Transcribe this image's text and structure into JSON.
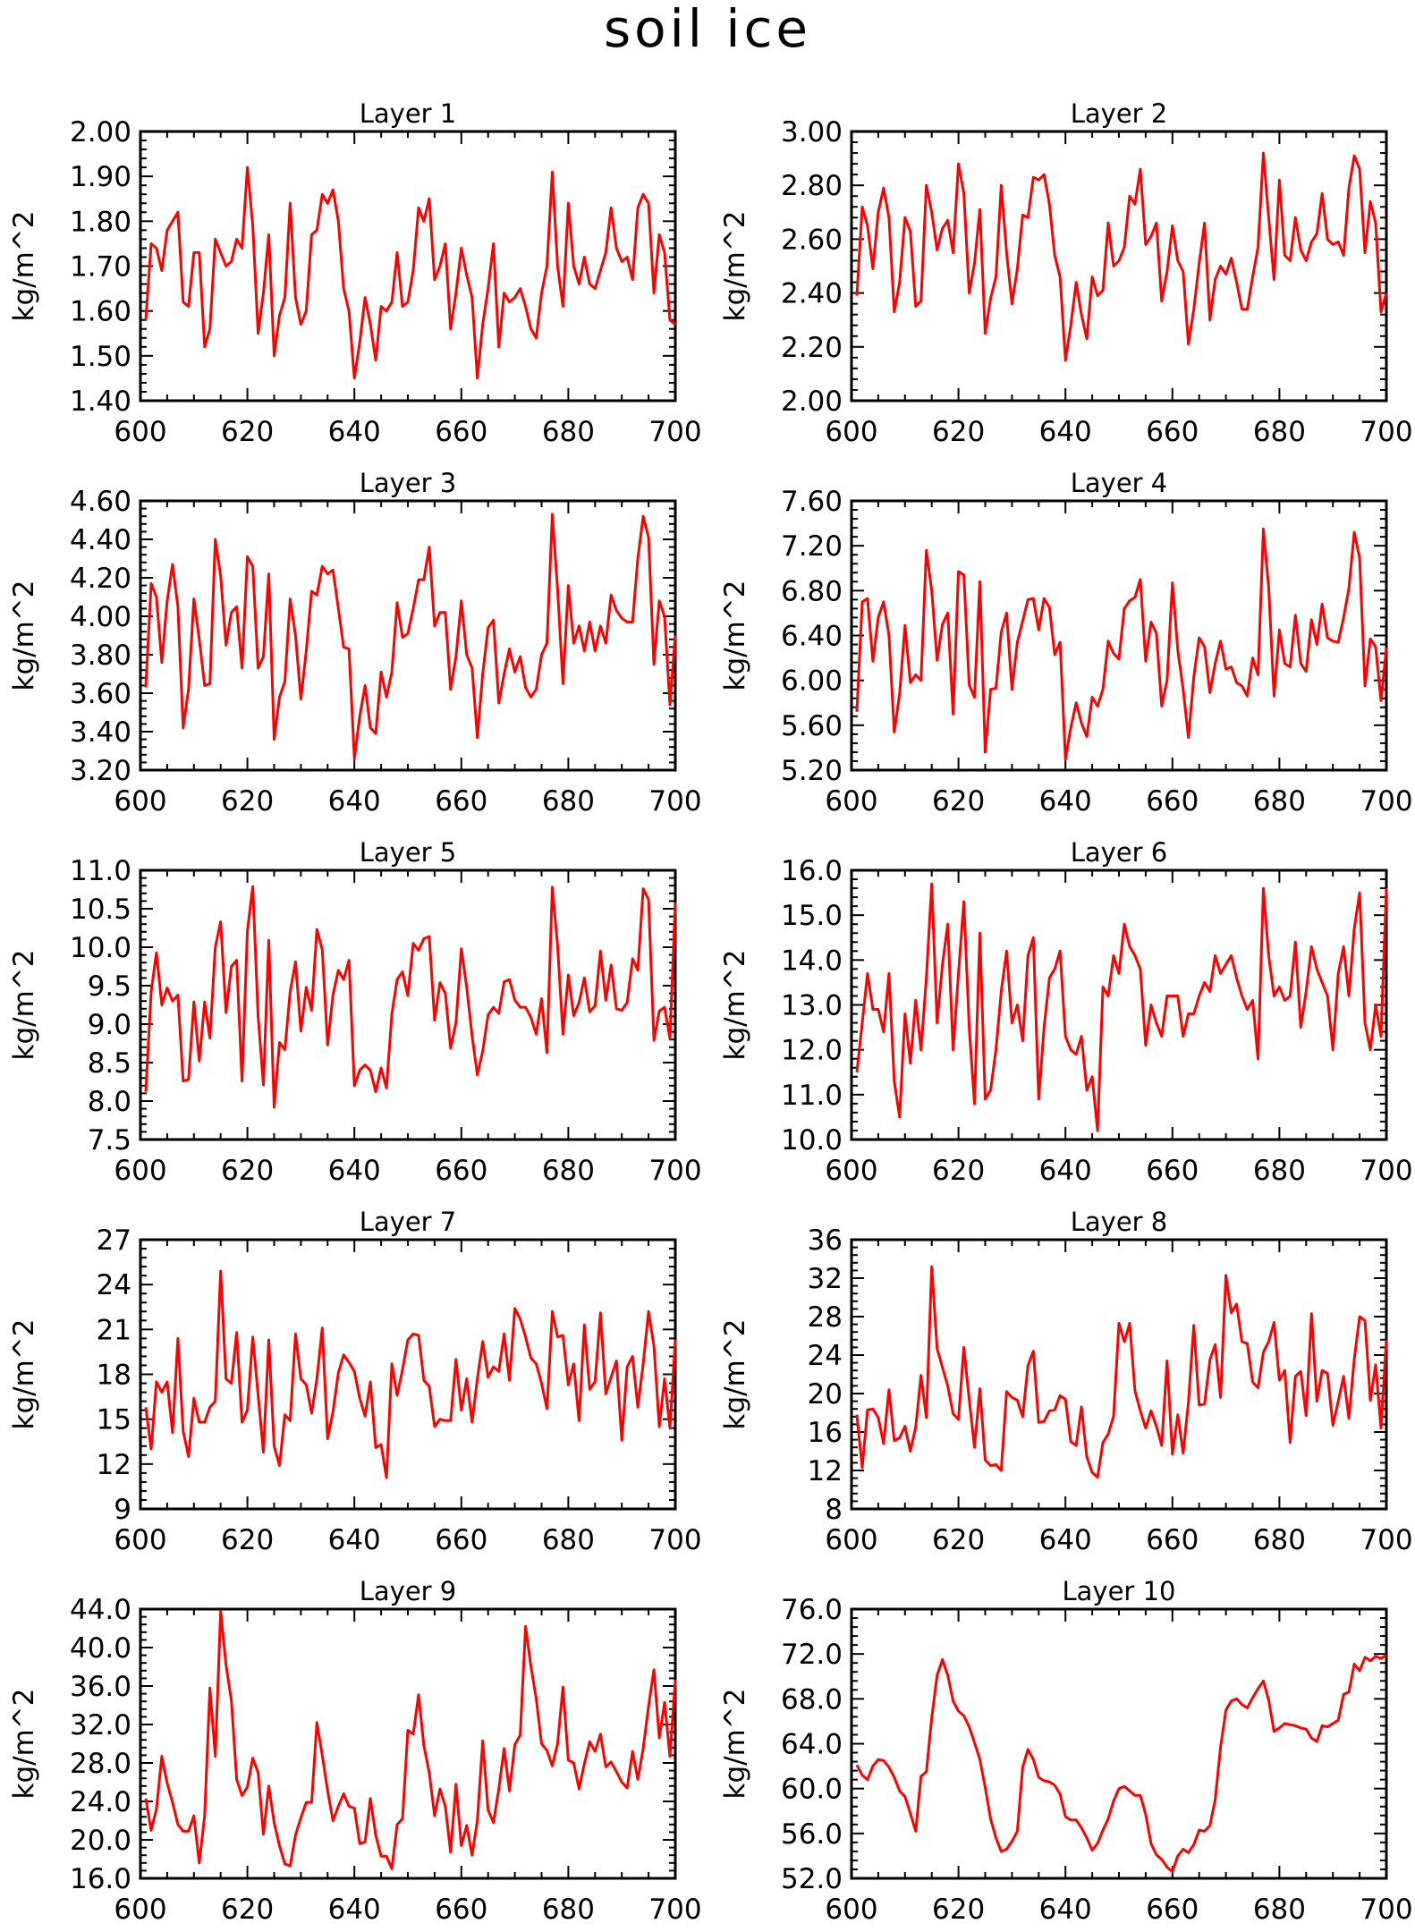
{
  "figure": {
    "title": "soil ice",
    "line_color": "#ff0000"
  },
  "chart_data": [
    {
      "type": "line",
      "title": "Layer 1",
      "xlabel": "",
      "ylabel": "kg/m^2",
      "xlim": [
        600,
        700
      ],
      "ylim": [
        1.4,
        2.0
      ],
      "xticks": [
        "600",
        "620",
        "640",
        "660",
        "680",
        "700"
      ],
      "yticks": [
        "1.40",
        "1.50",
        "1.60",
        "1.70",
        "1.80",
        "1.90",
        "2.00"
      ],
      "x_start": 601,
      "values": [
        1.58,
        1.75,
        1.74,
        1.69,
        1.78,
        1.8,
        1.82,
        1.62,
        1.61,
        1.73,
        1.73,
        1.52,
        1.56,
        1.76,
        1.73,
        1.7,
        1.71,
        1.76,
        1.74,
        1.92,
        1.79,
        1.55,
        1.64,
        1.77,
        1.5,
        1.59,
        1.63,
        1.84,
        1.63,
        1.57,
        1.6,
        1.77,
        1.78,
        1.86,
        1.84,
        1.87,
        1.8,
        1.65,
        1.6,
        1.45,
        1.53,
        1.63,
        1.57,
        1.49,
        1.61,
        1.6,
        1.62,
        1.73,
        1.61,
        1.62,
        1.69,
        1.83,
        1.8,
        1.85,
        1.67,
        1.7,
        1.75,
        1.56,
        1.64,
        1.74,
        1.68,
        1.63,
        1.45,
        1.57,
        1.65,
        1.75,
        1.52,
        1.64,
        1.62,
        1.63,
        1.65,
        1.61,
        1.56,
        1.54,
        1.64,
        1.7,
        1.91,
        1.7,
        1.61,
        1.84,
        1.7,
        1.66,
        1.72,
        1.66,
        1.65,
        1.69,
        1.73,
        1.83,
        1.74,
        1.71,
        1.72,
        1.67,
        1.83,
        1.86,
        1.84,
        1.64,
        1.77,
        1.73,
        1.58,
        1.57
      ]
    },
    {
      "type": "line",
      "title": "Layer 2",
      "xlabel": "",
      "ylabel": "kg/m^2",
      "xlim": [
        600,
        700
      ],
      "ylim": [
        2.0,
        3.0
      ],
      "xticks": [
        "600",
        "620",
        "640",
        "660",
        "680",
        "700"
      ],
      "yticks": [
        "2.00",
        "2.20",
        "2.40",
        "2.60",
        "2.80",
        "3.00"
      ],
      "x_start": 601,
      "values": [
        2.39,
        2.72,
        2.65,
        2.49,
        2.7,
        2.79,
        2.68,
        2.33,
        2.44,
        2.68,
        2.63,
        2.35,
        2.37,
        2.8,
        2.7,
        2.56,
        2.64,
        2.67,
        2.55,
        2.88,
        2.77,
        2.4,
        2.51,
        2.71,
        2.25,
        2.38,
        2.46,
        2.8,
        2.55,
        2.36,
        2.49,
        2.69,
        2.68,
        2.83,
        2.82,
        2.84,
        2.73,
        2.54,
        2.46,
        2.15,
        2.28,
        2.44,
        2.32,
        2.23,
        2.46,
        2.39,
        2.41,
        2.66,
        2.5,
        2.52,
        2.57,
        2.76,
        2.73,
        2.86,
        2.58,
        2.61,
        2.66,
        2.37,
        2.48,
        2.65,
        2.52,
        2.48,
        2.21,
        2.34,
        2.51,
        2.66,
        2.3,
        2.45,
        2.5,
        2.47,
        2.53,
        2.44,
        2.34,
        2.34,
        2.46,
        2.57,
        2.92,
        2.68,
        2.45,
        2.82,
        2.54,
        2.52,
        2.68,
        2.56,
        2.52,
        2.59,
        2.62,
        2.77,
        2.6,
        2.58,
        2.59,
        2.54,
        2.79,
        2.91,
        2.86,
        2.55,
        2.74,
        2.66,
        2.33,
        2.4
      ]
    },
    {
      "type": "line",
      "title": "Layer 3",
      "xlabel": "",
      "ylabel": "kg/m^2",
      "xlim": [
        600,
        700
      ],
      "ylim": [
        3.2,
        4.6
      ],
      "xticks": [
        "600",
        "620",
        "640",
        "660",
        "680",
        "700"
      ],
      "yticks": [
        "3.20",
        "3.40",
        "3.60",
        "3.80",
        "4.00",
        "4.20",
        "4.40",
        "4.60"
      ],
      "x_start": 601,
      "values": [
        3.63,
        4.17,
        4.1,
        3.76,
        4.08,
        4.27,
        4.05,
        3.42,
        3.62,
        4.09,
        3.88,
        3.64,
        3.65,
        4.4,
        4.21,
        3.85,
        4.02,
        4.05,
        3.73,
        4.31,
        4.26,
        3.73,
        3.79,
        4.22,
        3.36,
        3.58,
        3.66,
        4.09,
        3.9,
        3.57,
        3.82,
        4.13,
        4.11,
        4.26,
        4.22,
        4.24,
        4.04,
        3.84,
        3.83,
        3.26,
        3.48,
        3.64,
        3.42,
        3.39,
        3.71,
        3.58,
        3.71,
        4.07,
        3.89,
        3.91,
        4.04,
        4.19,
        4.19,
        4.36,
        3.95,
        4.02,
        4.02,
        3.62,
        3.79,
        4.08,
        3.8,
        3.73,
        3.37,
        3.7,
        3.94,
        3.98,
        3.55,
        3.7,
        3.83,
        3.71,
        3.79,
        3.63,
        3.58,
        3.62,
        3.8,
        3.86,
        4.53,
        4.14,
        3.65,
        4.16,
        3.86,
        3.95,
        3.82,
        3.97,
        3.82,
        3.95,
        3.86,
        4.11,
        4.03,
        3.99,
        3.97,
        3.97,
        4.3,
        4.52,
        4.41,
        3.75,
        4.08,
        4.0,
        3.54,
        3.9
      ]
    },
    {
      "type": "line",
      "title": "Layer 4",
      "xlabel": "",
      "ylabel": "kg/m^2",
      "xlim": [
        600,
        700
      ],
      "ylim": [
        5.2,
        7.6
      ],
      "xticks": [
        "600",
        "620",
        "640",
        "660",
        "680",
        "700"
      ],
      "yticks": [
        "5.20",
        "5.60",
        "6.00",
        "6.40",
        "6.80",
        "7.20",
        "7.60"
      ],
      "x_start": 601,
      "values": [
        5.72,
        6.7,
        6.73,
        6.17,
        6.56,
        6.7,
        6.4,
        5.54,
        5.88,
        6.49,
        5.98,
        6.05,
        6.0,
        7.16,
        6.8,
        6.18,
        6.5,
        6.6,
        5.7,
        6.97,
        6.94,
        5.96,
        5.85,
        6.88,
        5.36,
        5.92,
        5.93,
        6.43,
        6.6,
        5.92,
        6.34,
        6.53,
        6.72,
        6.73,
        6.45,
        6.73,
        6.65,
        6.23,
        6.34,
        5.3,
        5.58,
        5.8,
        5.62,
        5.5,
        5.85,
        5.77,
        5.92,
        6.35,
        6.24,
        6.19,
        6.64,
        6.71,
        6.74,
        6.9,
        6.17,
        6.52,
        6.42,
        5.77,
        6.0,
        6.87,
        6.27,
        5.92,
        5.49,
        6.03,
        6.38,
        6.3,
        5.89,
        6.15,
        6.35,
        6.1,
        6.12,
        5.98,
        5.95,
        5.86,
        6.2,
        6.05,
        7.35,
        6.83,
        5.86,
        6.45,
        6.15,
        6.12,
        6.58,
        6.15,
        6.08,
        6.54,
        6.32,
        6.68,
        6.38,
        6.35,
        6.34,
        6.56,
        6.82,
        7.32,
        7.09,
        5.95,
        6.37,
        6.3,
        5.82,
        6.29
      ]
    },
    {
      "type": "line",
      "title": "Layer 5",
      "xlabel": "",
      "ylabel": "kg/m^2",
      "xlim": [
        600,
        700
      ],
      "ylim": [
        7.5,
        11.0
      ],
      "xticks": [
        "600",
        "620",
        "640",
        "660",
        "680",
        "700"
      ],
      "yticks": [
        "7.5",
        "8.0",
        "8.5",
        "9.0",
        "9.5",
        "10.0",
        "10.5",
        "11.0"
      ],
      "x_start": 601,
      "values": [
        8.12,
        9.42,
        9.93,
        9.25,
        9.47,
        9.3,
        9.38,
        8.26,
        8.28,
        9.29,
        8.52,
        9.29,
        8.82,
        10.0,
        10.33,
        9.15,
        9.75,
        9.83,
        8.26,
        10.21,
        10.79,
        9.1,
        8.21,
        10.09,
        7.92,
        8.76,
        8.67,
        9.42,
        9.81,
        8.91,
        9.48,
        9.18,
        10.23,
        9.97,
        8.73,
        9.38,
        9.7,
        9.58,
        9.83,
        8.2,
        8.4,
        8.47,
        8.4,
        8.12,
        8.43,
        8.17,
        9.13,
        9.58,
        9.68,
        9.37,
        10.05,
        9.96,
        10.11,
        10.14,
        9.05,
        9.54,
        9.4,
        8.69,
        9.02,
        9.98,
        9.48,
        8.85,
        8.34,
        8.65,
        9.12,
        9.22,
        9.14,
        9.55,
        9.58,
        9.31,
        9.22,
        9.22,
        9.09,
        8.87,
        9.33,
        8.63,
        10.78,
        10.02,
        8.87,
        9.64,
        9.11,
        9.28,
        9.6,
        9.16,
        9.24,
        9.95,
        9.31,
        9.77,
        9.2,
        9.18,
        9.28,
        9.85,
        9.7,
        10.76,
        10.62,
        8.79,
        9.17,
        9.22,
        8.81,
        10.58
      ]
    },
    {
      "type": "line",
      "title": "Layer 6",
      "xlabel": "",
      "ylabel": "kg/m^2",
      "xlim": [
        600,
        700
      ],
      "ylim": [
        10.0,
        16.0
      ],
      "xticks": [
        "600",
        "620",
        "640",
        "660",
        "680",
        "700"
      ],
      "yticks": [
        "10.0",
        "11.0",
        "12.0",
        "13.0",
        "14.0",
        "15.0",
        "16.0"
      ],
      "x_start": 601,
      "values": [
        11.5,
        12.6,
        13.7,
        12.9,
        12.9,
        12.4,
        13.7,
        11.3,
        10.5,
        12.8,
        11.7,
        13.1,
        12.0,
        13.6,
        15.7,
        12.6,
        13.9,
        14.8,
        12.0,
        13.7,
        15.3,
        12.5,
        10.8,
        14.6,
        10.9,
        11.1,
        12.0,
        13.3,
        14.2,
        12.6,
        13.0,
        12.2,
        14.1,
        14.5,
        10.9,
        12.5,
        13.6,
        13.8,
        14.2,
        12.3,
        12.0,
        11.9,
        12.3,
        11.1,
        11.4,
        10.2,
        13.4,
        13.2,
        14.1,
        13.7,
        14.8,
        14.3,
        14.1,
        13.8,
        12.1,
        13.0,
        12.6,
        12.3,
        13.2,
        13.2,
        13.2,
        12.3,
        12.8,
        12.8,
        13.2,
        13.5,
        13.3,
        14.1,
        13.7,
        13.9,
        14.1,
        13.6,
        13.2,
        12.9,
        13.1,
        11.8,
        15.6,
        14.1,
        13.2,
        13.4,
        13.1,
        13.2,
        14.4,
        12.5,
        13.3,
        14.3,
        13.8,
        13.5,
        13.2,
        12.0,
        13.7,
        14.3,
        13.2,
        14.7,
        15.5,
        12.6,
        12.0,
        13.0,
        12.3,
        15.6
      ]
    },
    {
      "type": "line",
      "title": "Layer 7",
      "xlabel": "",
      "ylabel": "kg/m^2",
      "xlim": [
        600,
        700
      ],
      "ylim": [
        9,
        27
      ],
      "xticks": [
        "600",
        "620",
        "640",
        "660",
        "680",
        "700"
      ],
      "yticks": [
        "9",
        "12",
        "15",
        "18",
        "21",
        "24",
        "27"
      ],
      "x_start": 601,
      "values": [
        15.8,
        13.0,
        17.5,
        16.8,
        17.5,
        14.1,
        20.4,
        14.2,
        12.5,
        16.4,
        14.8,
        14.8,
        15.8,
        16.2,
        24.9,
        17.7,
        17.4,
        20.8,
        14.8,
        15.6,
        20.5,
        16.6,
        12.8,
        20.3,
        13.2,
        11.9,
        15.3,
        14.9,
        20.7,
        17.7,
        17.3,
        15.4,
        17.7,
        21.1,
        13.7,
        15.5,
        18.1,
        19.3,
        18.8,
        18.2,
        16.4,
        15.2,
        17.5,
        13.1,
        13.3,
        11.1,
        18.7,
        16.6,
        18.3,
        20.3,
        20.7,
        20.6,
        17.6,
        17.2,
        14.5,
        15.0,
        14.9,
        14.9,
        19.0,
        15.6,
        17.7,
        14.8,
        17.7,
        20.2,
        17.8,
        18.5,
        18.2,
        20.7,
        17.6,
        22.4,
        21.7,
        20.5,
        19.1,
        18.7,
        17.4,
        15.7,
        22.2,
        20.5,
        20.6,
        17.3,
        18.7,
        14.9,
        21.3,
        17.0,
        17.5,
        22.1,
        16.7,
        17.8,
        18.9,
        13.6,
        18.5,
        19.2,
        15.8,
        18.7,
        22.2,
        19.9,
        14.5,
        17.7,
        14.4,
        20.3
      ]
    },
    {
      "type": "line",
      "title": "Layer 8",
      "xlabel": "",
      "ylabel": "kg/m^2",
      "xlim": [
        600,
        700
      ],
      "ylim": [
        8,
        36
      ],
      "xticks": [
        "600",
        "620",
        "640",
        "660",
        "680",
        "700"
      ],
      "yticks": [
        "8",
        "12",
        "16",
        "20",
        "24",
        "28",
        "32",
        "36"
      ],
      "x_start": 601,
      "values": [
        17.8,
        12.3,
        18.3,
        18.4,
        17.5,
        14.8,
        20.4,
        15.1,
        15.4,
        16.6,
        14.0,
        16.5,
        21.9,
        17.5,
        33.2,
        24.7,
        22.7,
        20.8,
        17.9,
        17.3,
        24.8,
        19.4,
        14.4,
        20.5,
        13.1,
        12.5,
        12.6,
        12.0,
        20.2,
        19.6,
        19.3,
        17.6,
        22.9,
        24.4,
        17.0,
        17.1,
        18.2,
        18.3,
        19.8,
        19.4,
        15.0,
        14.6,
        18.6,
        13.4,
        11.8,
        11.3,
        14.9,
        15.8,
        17.6,
        27.3,
        25.4,
        27.3,
        20.3,
        18.2,
        16.4,
        18.2,
        16.6,
        14.6,
        23.4,
        13.7,
        17.8,
        13.8,
        19.1,
        27.1,
        18.8,
        18.9,
        23.5,
        25.1,
        19.6,
        32.3,
        28.4,
        29.3,
        25.4,
        25.2,
        21.2,
        20.6,
        24.3,
        25.4,
        27.4,
        21.4,
        22.4,
        14.9,
        21.8,
        22.3,
        17.7,
        28.3,
        19.2,
        22.4,
        22.1,
        16.7,
        19.2,
        21.8,
        17.4,
        23.6,
        28.0,
        27.6,
        19.3,
        23.0,
        16.4,
        25.6
      ]
    },
    {
      "type": "line",
      "title": "Layer 9",
      "xlabel": "",
      "ylabel": "kg/m^2",
      "xlim": [
        600,
        700
      ],
      "ylim": [
        16.0,
        44.0
      ],
      "xticks": [
        "600",
        "620",
        "640",
        "660",
        "680",
        "700"
      ],
      "yticks": [
        "16.0",
        "20.0",
        "24.0",
        "28.0",
        "32.0",
        "36.0",
        "40.0",
        "44.0"
      ],
      "x_start": 601,
      "values": [
        24.3,
        21.0,
        23.2,
        28.7,
        25.9,
        23.9,
        21.6,
        20.9,
        20.9,
        22.5,
        17.6,
        22.5,
        35.8,
        28.7,
        43.8,
        38.2,
        34.5,
        26.3,
        24.6,
        25.5,
        28.5,
        27.0,
        20.6,
        25.6,
        21.8,
        19.4,
        17.5,
        17.3,
        20.5,
        22.3,
        23.9,
        23.9,
        32.2,
        28.8,
        25.1,
        22.0,
        23.5,
        24.8,
        23.5,
        23.3,
        19.6,
        19.8,
        24.3,
        20.5,
        18.3,
        18.3,
        17.0,
        21.6,
        22.2,
        31.4,
        31.0,
        35.1,
        29.8,
        27.0,
        22.5,
        25.3,
        23.5,
        18.7,
        25.8,
        19.4,
        21.5,
        18.4,
        22.0,
        30.3,
        23.1,
        21.8,
        25.3,
        29.5,
        25.1,
        29.9,
        30.9,
        42.2,
        38.1,
        34.7,
        30.0,
        29.3,
        27.7,
        30.0,
        35.9,
        28.3,
        28.0,
        25.3,
        27.9,
        30.2,
        29.2,
        31.0,
        27.6,
        28.1,
        27.1,
        26.0,
        25.4,
        29.2,
        26.3,
        29.5,
        33.9,
        37.7,
        30.6,
        34.3,
        28.7,
        36.6
      ]
    },
    {
      "type": "line",
      "title": "Layer 10",
      "xlabel": "",
      "ylabel": "kg/m^2",
      "xlim": [
        600,
        700
      ],
      "ylim": [
        52.0,
        76.0
      ],
      "xticks": [
        "600",
        "620",
        "640",
        "660",
        "680",
        "700"
      ],
      "yticks": [
        "52.0",
        "56.0",
        "60.0",
        "64.0",
        "68.0",
        "72.0",
        "76.0"
      ],
      "x_start": 601,
      "values": [
        62.1,
        61.2,
        60.8,
        62.0,
        62.6,
        62.5,
        61.9,
        61.0,
        59.8,
        59.3,
        57.8,
        56.2,
        61.1,
        61.5,
        66.3,
        70.1,
        71.5,
        70.1,
        67.8,
        66.9,
        66.5,
        65.5,
        64.1,
        62.6,
        60.1,
        57.3,
        55.6,
        54.4,
        54.6,
        55.3,
        56.2,
        61.9,
        63.5,
        62.6,
        61.0,
        60.7,
        60.6,
        60.3,
        59.5,
        57.5,
        57.2,
        57.2,
        56.5,
        55.6,
        54.5,
        55.1,
        56.3,
        57.3,
        58.9,
        60.0,
        60.2,
        59.8,
        59.4,
        59.4,
        57.7,
        55.1,
        54.1,
        53.7,
        53.0,
        52.6,
        54.0,
        54.6,
        54.3,
        55.0,
        56.3,
        56.2,
        56.7,
        59.0,
        63.7,
        67.0,
        67.8,
        68.0,
        67.5,
        67.2,
        68.1,
        68.9,
        69.6,
        67.9,
        65.1,
        65.4,
        65.8,
        65.7,
        65.6,
        65.4,
        65.3,
        64.5,
        64.2,
        65.6,
        65.5,
        65.8,
        66.1,
        68.4,
        68.6,
        71.1,
        70.5,
        71.7,
        71.4,
        71.8,
        71.6,
        71.9
      ]
    }
  ]
}
